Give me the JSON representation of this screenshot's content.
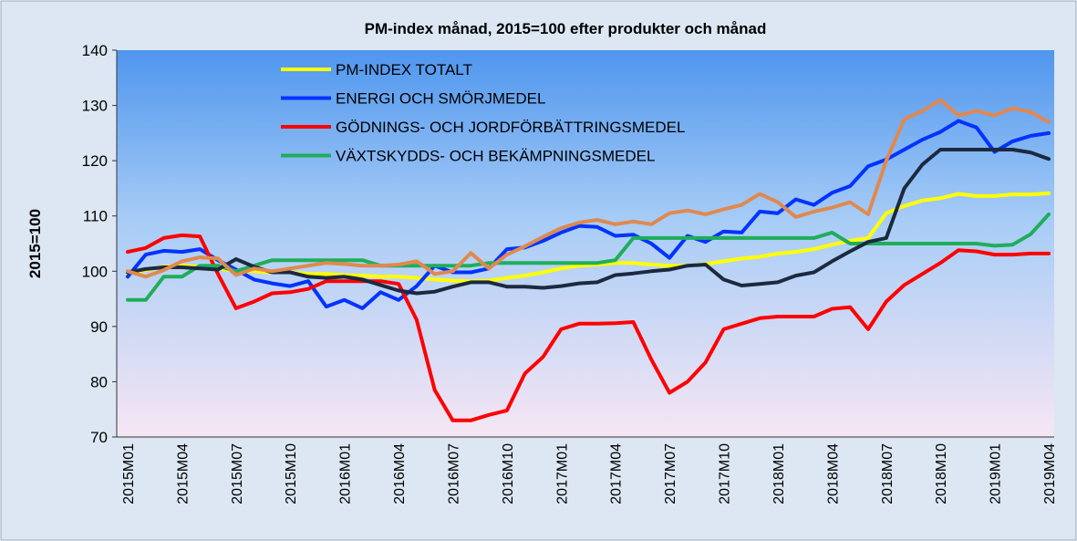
{
  "chart_data": {
    "type": "line",
    "title": "PM-index månad, 2015=100 efter produkter och månad",
    "ylabel": "2015=100",
    "categories": [
      "2015M01",
      null,
      null,
      "2015M04",
      null,
      null,
      "2015M07",
      null,
      null,
      "2015M10",
      null,
      null,
      "2016M01",
      null,
      null,
      "2016M04",
      null,
      null,
      "2016M07",
      null,
      null,
      "2016M10",
      null,
      null,
      "2017M01",
      null,
      null,
      "2017M04",
      null,
      null,
      "2017M07",
      null,
      null,
      "2017M10",
      null,
      null,
      "2018M01",
      null,
      null,
      "2018M04",
      null,
      null,
      "2018M07",
      null,
      null,
      "2018M10",
      null,
      null,
      "2019M01",
      null,
      null,
      "2019M04"
    ],
    "ylim": [
      70,
      140
    ],
    "yticks": [
      70,
      80,
      90,
      100,
      110,
      120,
      130,
      140
    ],
    "grid": false,
    "legend": "top-left",
    "series": [
      {
        "name": "PM-INDEX TOTALT",
        "color": "#ffff00",
        "values": [
          99.5,
          100.2,
          100.8,
          101,
          100.8,
          100.5,
          100,
          100,
          99.8,
          99.8,
          99.5,
          99.5,
          99.3,
          99.2,
          99,
          99,
          98.8,
          98.5,
          98.3,
          98.2,
          98.3,
          98.8,
          99.2,
          99.8,
          100.5,
          101,
          101.2,
          101.5,
          101.5,
          101.2,
          101,
          101,
          101.3,
          101.8,
          102.3,
          102.6,
          103.2,
          103.5,
          104,
          104.8,
          105.5,
          106,
          110.5,
          111.8,
          112.8,
          113.2,
          114,
          113.6,
          113.6,
          113.9,
          113.9,
          114.1
        ]
      },
      {
        "name": "ENERGI OCH SMÖRJMEDEL",
        "color": "#0033ff",
        "values": [
          99,
          103,
          103.7,
          103.5,
          104,
          102,
          100.3,
          98.5,
          97.8,
          97.3,
          98.2,
          93.6,
          94.8,
          93.3,
          96.2,
          94.8,
          97.3,
          101,
          99.8,
          99.8,
          100.5,
          104,
          104.3,
          105.5,
          107,
          108.2,
          108,
          106.4,
          106.6,
          105,
          102.4,
          106.4,
          105.3,
          107.2,
          107,
          110.8,
          110.5,
          113,
          112,
          114.2,
          115.4,
          119,
          120.2,
          122,
          123.8,
          125.2,
          127.2,
          126,
          121.6,
          123.5,
          124.5,
          125
        ]
      },
      {
        "name": "GÖDNINGS- OCH JORDFÖRBÄTTRINGSMEDEL",
        "color": "#ff0000",
        "values": [
          103.5,
          104.2,
          106,
          106.5,
          106.3,
          99.5,
          93.3,
          94.5,
          96,
          96.2,
          96.8,
          98.2,
          98.2,
          98.2,
          98.2,
          97.7,
          91.2,
          78.5,
          73,
          73,
          74,
          74.8,
          81.5,
          84.5,
          89.5,
          90.5,
          90.5,
          90.6,
          90.8,
          84,
          78,
          80,
          83.5,
          89.5,
          90.5,
          91.5,
          91.8,
          91.8,
          91.8,
          93.2,
          93.5,
          89.5,
          94.5,
          97.5,
          99.5,
          101.5,
          103.8,
          103.6,
          103,
          103,
          103.2,
          103.2
        ]
      },
      {
        "name": "VÄXTSKYDDS- OCH BEKÄMPNINGSMEDEL",
        "color": "#1fae5a",
        "values": [
          94.8,
          94.8,
          99,
          99,
          101,
          101,
          100,
          101,
          102,
          102,
          102,
          102,
          102,
          102,
          101,
          101,
          101,
          101,
          101,
          101,
          101.5,
          101.5,
          101.5,
          101.5,
          101.5,
          101.5,
          101.5,
          102,
          106,
          106,
          106,
          106,
          106,
          106,
          106,
          106,
          106,
          106,
          106,
          107,
          105,
          105,
          105,
          105,
          105,
          105,
          105,
          105,
          104.6,
          104.8,
          106.7,
          110.3
        ]
      },
      {
        "color": "#1b2a3f",
        "values": [
          99.8,
          100.4,
          100.7,
          100.7,
          100.5,
          100.3,
          102.2,
          100.8,
          99.8,
          99.8,
          99,
          98.8,
          99,
          98.5,
          97.5,
          96.5,
          96,
          96.3,
          97.2,
          98,
          98,
          97.2,
          97.2,
          97,
          97.3,
          97.8,
          98,
          99.3,
          99.6,
          100,
          100.3,
          101,
          101.2,
          98.5,
          97.4,
          97.7,
          98,
          99.2,
          99.8,
          101.8,
          103.6,
          105.3,
          106,
          115,
          119.3,
          122,
          122,
          122,
          122,
          122,
          121.5,
          120.3
        ]
      },
      {
        "color": "#e0894e",
        "values": [
          100,
          99,
          100.2,
          101.8,
          102.5,
          102.3,
          99.3,
          100.5,
          100,
          100.5,
          101,
          101.5,
          101.3,
          101,
          101,
          101.2,
          101.8,
          99.5,
          100,
          103.3,
          100.5,
          103,
          104.5,
          106.2,
          107.8,
          108.8,
          109.3,
          108.5,
          109,
          108.5,
          110.5,
          111,
          110.3,
          111.2,
          112,
          114,
          112.5,
          109.8,
          110.8,
          111.5,
          112.5,
          110.3,
          120,
          127.5,
          129,
          131,
          128.2,
          129,
          128.2,
          129.5,
          128.8,
          127
        ]
      }
    ]
  }
}
